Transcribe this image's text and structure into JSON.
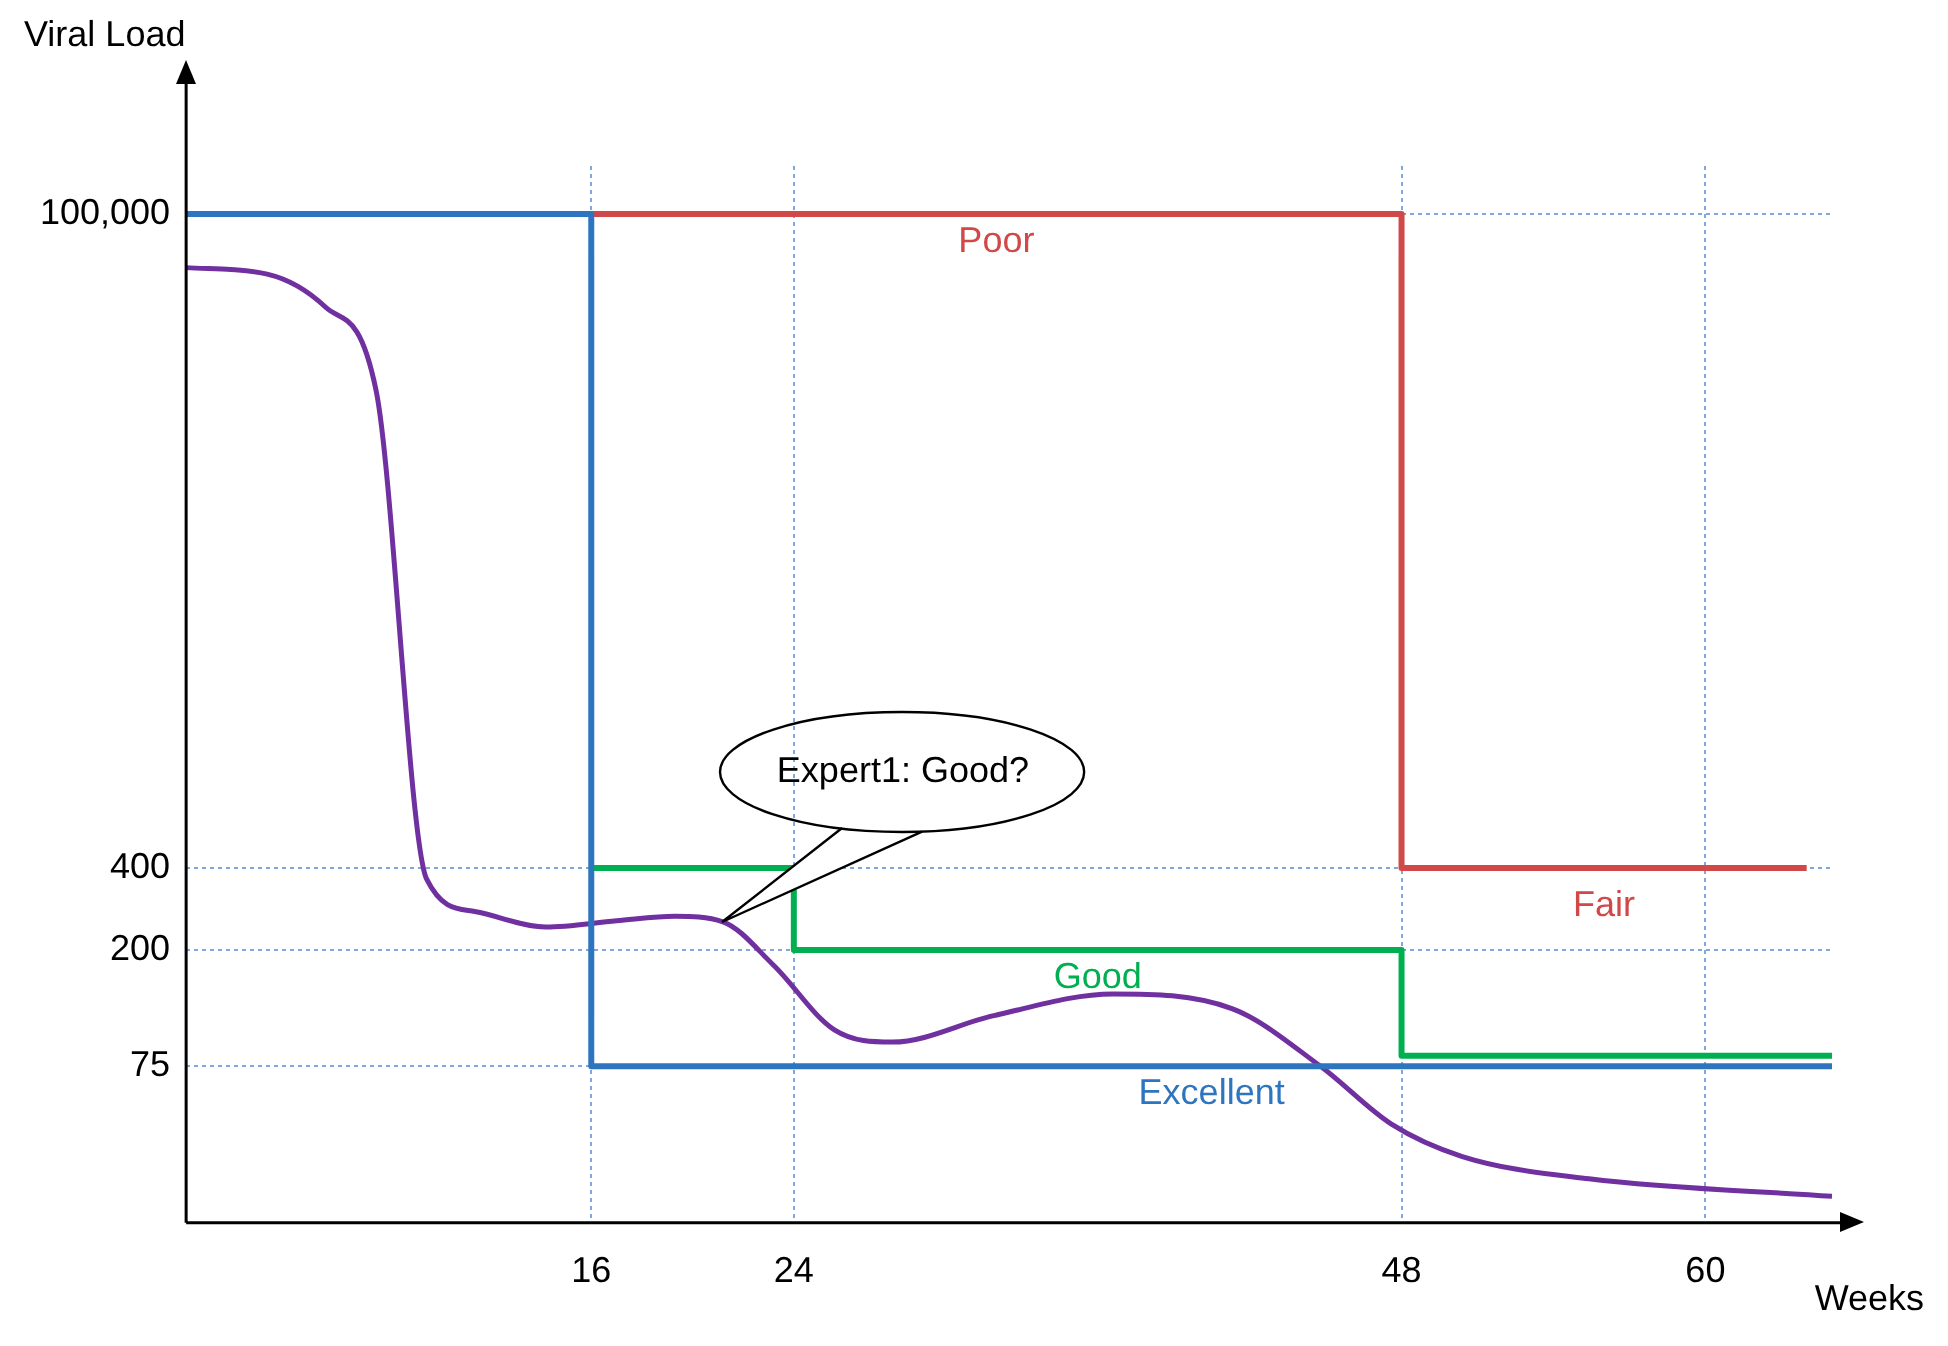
{
  "chart_data": {
    "type": "line",
    "xlabel": "Weeks",
    "ylabel": "Viral Load",
    "xlim": [
      0,
      65
    ],
    "xticks": [
      16,
      24,
      48,
      60
    ],
    "log": "y",
    "ylim": [
      20,
      150000
    ],
    "yticks": [
      75,
      200,
      400,
      {
        "value": 100000,
        "label": "100,000"
      }
    ],
    "grid": true,
    "legend": false,
    "marker": "none",
    "line_style": "solid",
    "series": [
      {
        "name": "Excellent",
        "type": "step",
        "color": "#2e75c0",
        "x": [
          0,
          16,
          65
        ],
        "values": [
          100000,
          75,
          75
        ]
      },
      {
        "name": "Poor",
        "type": "step",
        "color": "#d04848",
        "x": [
          16,
          48,
          64
        ],
        "values": [
          100000,
          400,
          400
        ]
      },
      {
        "name": "Good",
        "type": "step",
        "color": "#00b050",
        "x": [
          16,
          24,
          48,
          65
        ],
        "values": [
          400,
          200,
          82,
          82
        ]
      },
      {
        "color": "#7030a0",
        "x": [
          0,
          3.2,
          5.5,
          7.5,
          9.5,
          11.4,
          14.2,
          17,
          19.3,
          21.2,
          23.2,
          25.6,
          27.9,
          31.9,
          36.6,
          41.3,
          44.8,
          47.6,
          50.4,
          55.4,
          65
        ],
        "values": [
          63600,
          60200,
          45600,
          22600,
          364,
          277,
          243,
          256,
          266,
          254,
          176,
          102,
          92,
          115,
          138,
          122,
          75,
          46,
          35,
          29,
          25
        ]
      }
    ],
    "annotations": [
      {
        "text": "Expert1: Good?",
        "x": 21.2,
        "y": 254
      },
      {
        "text": "Fair",
        "x": 56,
        "y": 400
      }
    ]
  }
}
